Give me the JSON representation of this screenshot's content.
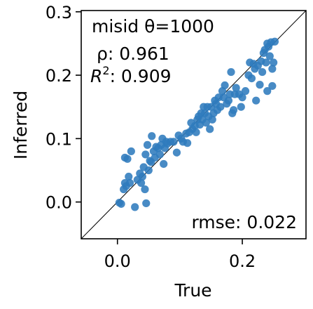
{
  "chart_data": {
    "type": "scatter",
    "xlabel": "True",
    "ylabel": "Inferred",
    "xlim": [
      -0.058,
      0.302
    ],
    "ylim": [
      -0.058,
      0.302
    ],
    "xticks": [
      0.0,
      0.2
    ],
    "xtick_labels": [
      "0.0",
      "0.2"
    ],
    "yticks": [
      0.0,
      0.1,
      0.2,
      0.3
    ],
    "ytick_labels": [
      "0.0",
      "0.1",
      "0.2",
      "0.3"
    ],
    "grid": false,
    "identity_line": true,
    "marker_color": "#2f7bbd",
    "annotations": {
      "title": "misid θ=1000",
      "rho": "ρ: 0.961",
      "r2_prefix": "R",
      "r2_exp": "2",
      "r2_value": ": 0.909",
      "rmse": "rmse: 0.022"
    },
    "points": [
      [
        0.003,
        -0.001
      ],
      [
        0.006,
        -0.003
      ],
      [
        0.01,
        0.02
      ],
      [
        0.012,
        0.03
      ],
      [
        0.014,
        0.025
      ],
      [
        0.018,
        0.04
      ],
      [
        0.02,
        0.03
      ],
      [
        0.012,
        0.07
      ],
      [
        0.016,
        0.068
      ],
      [
        0.022,
        0.08
      ],
      [
        0.028,
        -0.008
      ],
      [
        0.032,
        0.035
      ],
      [
        0.036,
        0.045
      ],
      [
        0.038,
        0.03
      ],
      [
        0.04,
        0.04
      ],
      [
        0.042,
        0.055
      ],
      [
        0.044,
        0.02
      ],
      [
        0.045,
        0.075
      ],
      [
        0.046,
        -0.002
      ],
      [
        0.048,
        0.09
      ],
      [
        0.05,
        0.05
      ],
      [
        0.052,
        0.065
      ],
      [
        0.054,
        0.063
      ],
      [
        0.055,
        0.104
      ],
      [
        0.058,
        0.08
      ],
      [
        0.06,
        0.07
      ],
      [
        0.062,
        0.087
      ],
      [
        0.065,
        0.085
      ],
      [
        0.068,
        0.075
      ],
      [
        0.07,
        0.09
      ],
      [
        0.072,
        0.1
      ],
      [
        0.074,
        0.06
      ],
      [
        0.076,
        0.085
      ],
      [
        0.078,
        0.095
      ],
      [
        0.08,
        0.092
      ],
      [
        0.085,
        0.095
      ],
      [
        0.09,
        0.095
      ],
      [
        0.095,
        0.078
      ],
      [
        0.098,
        0.105
      ],
      [
        0.102,
        0.1
      ],
      [
        0.105,
        0.095
      ],
      [
        0.11,
        0.108
      ],
      [
        0.112,
        0.093
      ],
      [
        0.115,
        0.11
      ],
      [
        0.118,
        0.125
      ],
      [
        0.12,
        0.115
      ],
      [
        0.124,
        0.12
      ],
      [
        0.126,
        0.11
      ],
      [
        0.128,
        0.13
      ],
      [
        0.13,
        0.135
      ],
      [
        0.132,
        0.122
      ],
      [
        0.134,
        0.14
      ],
      [
        0.136,
        0.13
      ],
      [
        0.138,
        0.15
      ],
      [
        0.14,
        0.14
      ],
      [
        0.142,
        0.125
      ],
      [
        0.144,
        0.15
      ],
      [
        0.146,
        0.135
      ],
      [
        0.148,
        0.115
      ],
      [
        0.15,
        0.15
      ],
      [
        0.152,
        0.13
      ],
      [
        0.154,
        0.14
      ],
      [
        0.156,
        0.16
      ],
      [
        0.158,
        0.155
      ],
      [
        0.16,
        0.145
      ],
      [
        0.162,
        0.165
      ],
      [
        0.165,
        0.15
      ],
      [
        0.168,
        0.175
      ],
      [
        0.17,
        0.165
      ],
      [
        0.172,
        0.184
      ],
      [
        0.175,
        0.155
      ],
      [
        0.178,
        0.16
      ],
      [
        0.18,
        0.17
      ],
      [
        0.182,
        0.205
      ],
      [
        0.184,
        0.14
      ],
      [
        0.186,
        0.145
      ],
      [
        0.188,
        0.17
      ],
      [
        0.19,
        0.18
      ],
      [
        0.195,
        0.17
      ],
      [
        0.198,
        0.15
      ],
      [
        0.2,
        0.165
      ],
      [
        0.205,
        0.175
      ],
      [
        0.21,
        0.2
      ],
      [
        0.212,
        0.22
      ],
      [
        0.215,
        0.195
      ],
      [
        0.218,
        0.218
      ],
      [
        0.22,
        0.21
      ],
      [
        0.222,
        0.16
      ],
      [
        0.225,
        0.215
      ],
      [
        0.228,
        0.185
      ],
      [
        0.23,
        0.222
      ],
      [
        0.232,
        0.205
      ],
      [
        0.234,
        0.235
      ],
      [
        0.236,
        0.24
      ],
      [
        0.238,
        0.22
      ],
      [
        0.24,
        0.25
      ],
      [
        0.24,
        0.175
      ],
      [
        0.242,
        0.245
      ],
      [
        0.244,
        0.23
      ],
      [
        0.246,
        0.252
      ],
      [
        0.248,
        0.21
      ],
      [
        0.248,
        0.183
      ],
      [
        0.25,
        0.22
      ],
      [
        0.252,
        0.253
      ]
    ]
  }
}
